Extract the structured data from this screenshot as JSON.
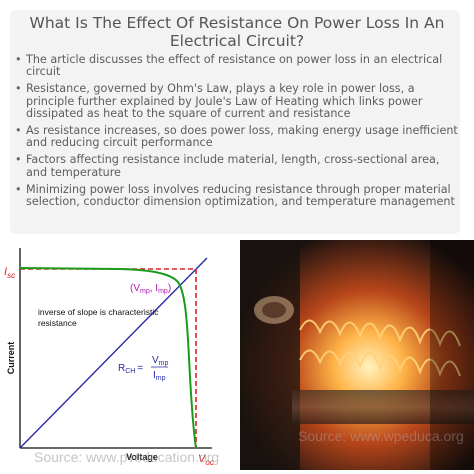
{
  "header": {
    "title_line1": "What Is The Effect Of Resistance On Power Loss In An",
    "title_line2": "Electrical Circuit?"
  },
  "bullets": [
    "The article discusses the effect of resistance on power loss in an electrical circuit",
    "Resistance, governed by Ohm's Law, plays a key role in power loss, a principle further explained by Joule's Law of Heating which links power dissipated as heat to the square of current and resistance",
    "As resistance increases, so does power loss, making energy usage inefficient and reducing circuit performance",
    "Factors affecting resistance include material, length, cross-sectional area, and temperature",
    "Minimizing power loss involves reducing resistance through proper material selection, conductor dimension optimization, and temperature management"
  ],
  "chart": {
    "ylabel": "Current",
    "xlabel": "Voltage",
    "isc_main": "I",
    "isc_sub": "sc",
    "voc_main": "V",
    "voc_sub": "oc",
    "mpp_label": "(V",
    "mpp_v_sub": "mp",
    "mpp_mid": ", I",
    "mpp_i_sub": "mp",
    "mpp_close": ")",
    "note_line1": "inverse of slope is characteristic",
    "note_line2": "resistance",
    "formula_r": "R",
    "formula_r_sub": "CH",
    "formula_eq": "=",
    "formula_num": "V",
    "formula_num_sub": "mp",
    "formula_den": "I",
    "formula_den_sub": "mp",
    "source": "Source: www.pveducation.org",
    "colors": {
      "curve": "#1a9c1a",
      "dashed": "#e02020",
      "line": "#2a2aa8",
      "label_red": "#e02020",
      "label_purple": "#b01ab0"
    }
  },
  "photo": {
    "source": "Source: www.wpeduca.org",
    "description_icon": "heating-filament-image"
  }
}
